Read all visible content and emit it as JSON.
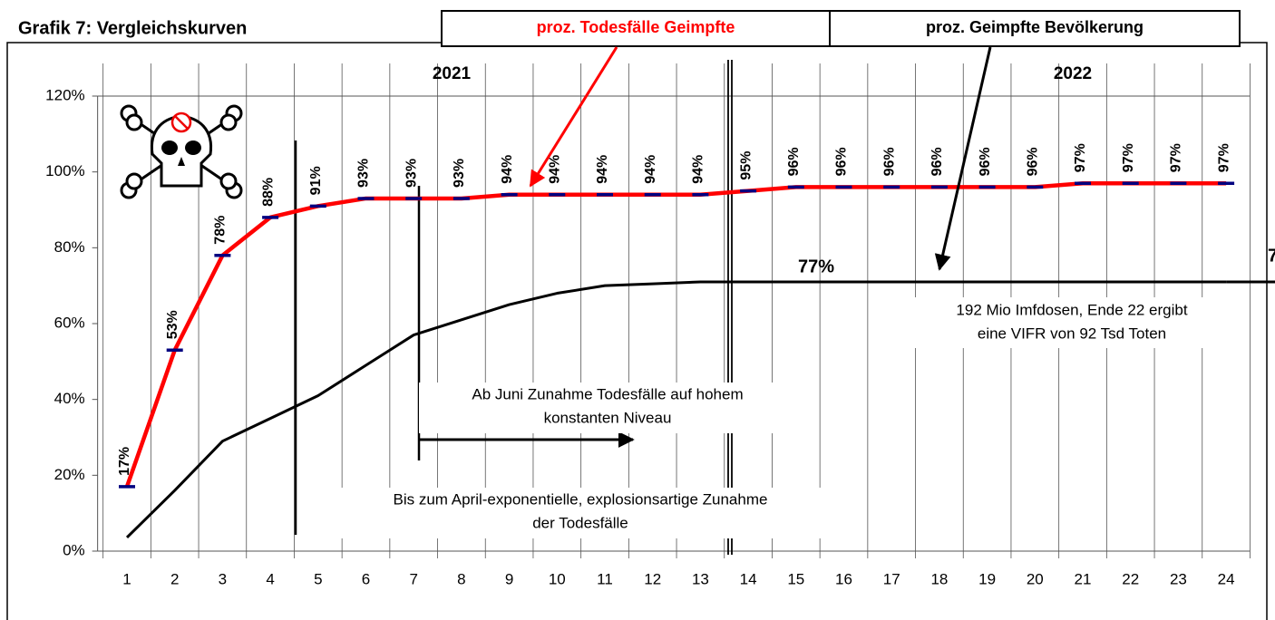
{
  "chart_data": {
    "type": "line",
    "title": "Grafik 7: Vergleichskurven",
    "categories": [
      1,
      2,
      3,
      4,
      5,
      6,
      7,
      8,
      9,
      10,
      11,
      12,
      13,
      14,
      15,
      16,
      17,
      18,
      19,
      20,
      21,
      22,
      23,
      24
    ],
    "series": [
      {
        "name": "proz. Todesfälle Geimpfte",
        "color": "#ff0000",
        "values": [
          17,
          53,
          78,
          88,
          91,
          93,
          93,
          93,
          94,
          94,
          94,
          94,
          94,
          95,
          96,
          96,
          96,
          96,
          96,
          96,
          97,
          97,
          97,
          97
        ],
        "value_labels": [
          "17%",
          "53%",
          "78%",
          "88%",
          "91%",
          "93%",
          "93%",
          "93%",
          "94%",
          "94%",
          "94%",
          "94%",
          "94%",
          "95%",
          "96%",
          "96%",
          "96%",
          "96%",
          "96%",
          "96%",
          "97%",
          "97%",
          "97%",
          "97%"
        ]
      },
      {
        "name": "proz. Geimpfte  Bevölkerung",
        "color": "#000000",
        "values": [
          3.6,
          16,
          29,
          35,
          41,
          49,
          57,
          61,
          65,
          68,
          70,
          70.5,
          71,
          71,
          71,
          71,
          71,
          71,
          71,
          71,
          71,
          71,
          71,
          71
        ]
      }
    ],
    "ylim": [
      0,
      120
    ],
    "yticks": [
      {
        "value": 0,
        "label": "0%"
      },
      {
        "value": 20,
        "label": "20%"
      },
      {
        "value": 40,
        "label": "40%"
      },
      {
        "value": 60,
        "label": "60%"
      },
      {
        "value": 80,
        "label": "80%"
      },
      {
        "value": 100,
        "label": "100%"
      },
      {
        "value": 120,
        "label": "120%"
      }
    ],
    "annotations": [
      "2021",
      "2022",
      "77%",
      "7",
      "Ab Juni Zunahme Todesfälle auf hohem",
      "konstanten Niveau",
      "Bis zum April-exponentielle, explosionsartige Zunahme",
      "der Todesfälle",
      "192 Mio Imfdosen, Ende 22 ergibt",
      "eine VIFR von 92 Tsd Toten"
    ],
    "grid": true
  }
}
